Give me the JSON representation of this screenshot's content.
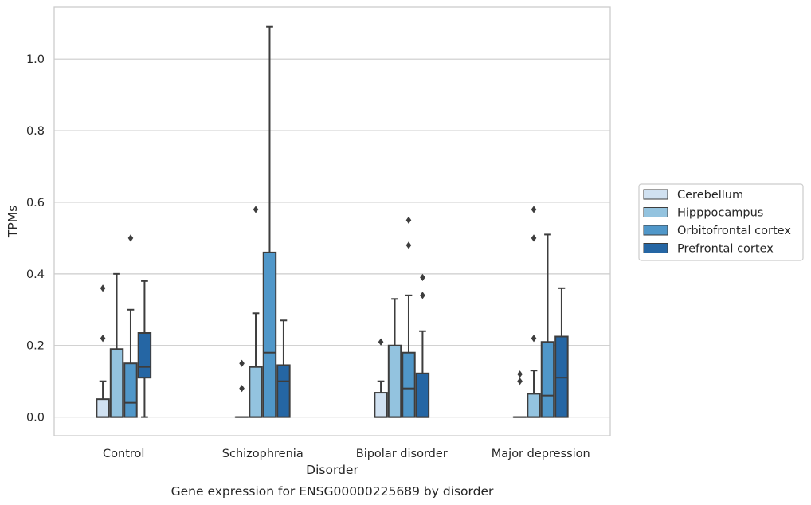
{
  "chart_data": {
    "type": "box",
    "title": "",
    "caption": "Gene expression for ENSG00000225689 by disorder",
    "xlabel": "Disorder",
    "ylabel": "TPMs",
    "ylim": [
      -0.052,
      1.145
    ],
    "yticks": [
      "0.0",
      "0.2",
      "0.4",
      "0.6",
      "0.8",
      "1.0"
    ],
    "grid": "horizontal",
    "legend_position": "right",
    "categories": [
      "Control",
      "Schizophrenia",
      "Bipolar disorder",
      "Major depression"
    ],
    "series": [
      {
        "name": "Cerebellum",
        "color": "#d0e1f1",
        "boxes": [
          {
            "whislo": 0,
            "q1": 0,
            "med": 0,
            "q3": 0.05,
            "whishi": 0.1,
            "fliers": [
              0.22,
              0.36
            ]
          },
          {
            "whislo": 0,
            "q1": 0,
            "med": 0,
            "q3": 0,
            "whishi": 0,
            "fliers": [
              0.08,
              0.15
            ]
          },
          {
            "whislo": 0,
            "q1": 0,
            "med": 0,
            "q3": 0.068,
            "whishi": 0.1,
            "fliers": [
              0.21
            ]
          },
          {
            "whislo": 0,
            "q1": 0,
            "med": 0,
            "q3": 0,
            "whishi": 0,
            "fliers": [
              0.1,
              0.12
            ]
          }
        ]
      },
      {
        "name": "Hipppocampus",
        "color": "#93c3df",
        "boxes": [
          {
            "whislo": 0,
            "q1": 0,
            "med": 0,
            "q3": 0.19,
            "whishi": 0.4,
            "fliers": []
          },
          {
            "whislo": 0,
            "q1": 0,
            "med": 0,
            "q3": 0.14,
            "whishi": 0.29,
            "fliers": [
              0.58
            ]
          },
          {
            "whislo": 0,
            "q1": 0,
            "med": 0,
            "q3": 0.2,
            "whishi": 0.33,
            "fliers": []
          },
          {
            "whislo": 0,
            "q1": 0,
            "med": 0,
            "q3": 0.065,
            "whishi": 0.13,
            "fliers": [
              0.22,
              0.5,
              0.58
            ]
          }
        ]
      },
      {
        "name": "Orbitofrontal cortex",
        "color": "#5097c9",
        "boxes": [
          {
            "whislo": 0,
            "q1": 0,
            "med": 0.04,
            "q3": 0.15,
            "whishi": 0.3,
            "fliers": [
              0.5
            ]
          },
          {
            "whislo": 0,
            "q1": 0,
            "med": 0.18,
            "q3": 0.46,
            "whishi": 1.09,
            "fliers": []
          },
          {
            "whislo": 0,
            "q1": 0,
            "med": 0.08,
            "q3": 0.18,
            "whishi": 0.34,
            "fliers": [
              0.48,
              0.55
            ]
          },
          {
            "whislo": 0,
            "q1": 0,
            "med": 0.06,
            "q3": 0.21,
            "whishi": 0.51,
            "fliers": []
          }
        ]
      },
      {
        "name": "Prefrontal cortex",
        "color": "#2566a4",
        "boxes": [
          {
            "whislo": 0,
            "q1": 0.11,
            "med": 0.14,
            "q3": 0.235,
            "whishi": 0.38,
            "fliers": []
          },
          {
            "whislo": 0,
            "q1": 0,
            "med": 0.1,
            "q3": 0.145,
            "whishi": 0.27,
            "fliers": []
          },
          {
            "whislo": 0,
            "q1": 0,
            "med": 0,
            "q3": 0.122,
            "whishi": 0.24,
            "fliers": [
              0.34,
              0.39
            ]
          },
          {
            "whislo": 0,
            "q1": 0,
            "med": 0.11,
            "q3": 0.225,
            "whishi": 0.36,
            "fliers": []
          }
        ]
      }
    ]
  }
}
